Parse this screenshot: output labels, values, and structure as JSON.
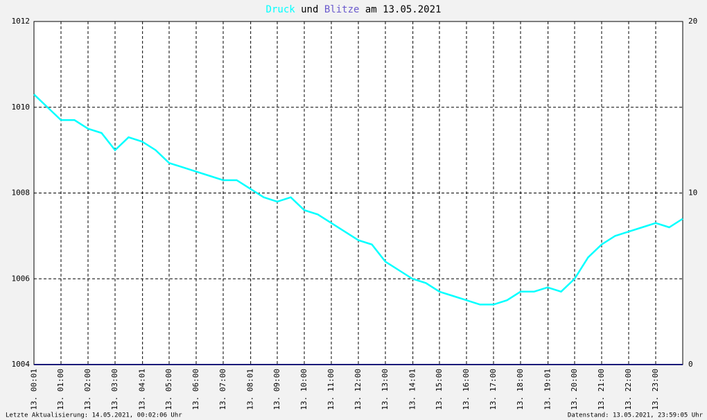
{
  "chart_data": {
    "type": "line",
    "title_parts": [
      "Druck",
      "und",
      "Blitze",
      "am 13.05.2021"
    ],
    "x": [
      0,
      0.5,
      1,
      1.5,
      2,
      2.5,
      3,
      3.5,
      4,
      4.5,
      5,
      5.5,
      6,
      6.5,
      7,
      7.5,
      8,
      8.5,
      9,
      9.5,
      10,
      10.5,
      11,
      11.5,
      12,
      12.5,
      13,
      13.5,
      14,
      14.5,
      15,
      15.5,
      16,
      16.5,
      17,
      17.5,
      18,
      18.5,
      19,
      19.5,
      20,
      20.5,
      21,
      21.5,
      22,
      22.5,
      23,
      23.5,
      24
    ],
    "series": [
      {
        "name": "Druck",
        "color": "#00ffff",
        "values": [
          1010.3,
          1010.0,
          1009.7,
          1009.7,
          1009.5,
          1009.4,
          1009.0,
          1009.3,
          1009.2,
          1009.0,
          1008.7,
          1008.6,
          1008.5,
          1008.4,
          1008.3,
          1008.3,
          1008.1,
          1007.9,
          1007.8,
          1007.9,
          1007.6,
          1007.5,
          1007.3,
          1007.1,
          1006.9,
          1006.8,
          1006.4,
          1006.2,
          1006.0,
          1005.9,
          1005.7,
          1005.6,
          1005.5,
          1005.4,
          1005.4,
          1005.5,
          1005.7,
          1005.7,
          1005.8,
          1005.7,
          1006.0,
          1006.5,
          1006.8,
          1007.0,
          1007.1,
          1007.2,
          1007.3,
          1007.2,
          1007.4
        ]
      },
      {
        "name": "Blitze",
        "color": "#1a1a7a",
        "axis": "y2",
        "values": [
          0,
          0,
          0,
          0,
          0,
          0,
          0,
          0,
          0,
          0,
          0,
          0,
          0,
          0,
          0,
          0,
          0,
          0,
          0,
          0,
          0,
          0,
          0,
          0,
          0,
          0,
          0,
          0,
          0,
          0,
          0,
          0,
          0,
          0,
          0,
          0,
          0,
          0,
          0,
          0,
          0,
          0,
          0,
          0,
          0,
          0,
          0,
          0,
          0
        ]
      }
    ],
    "xlim": [
      0,
      24
    ],
    "xticks": [
      {
        "value": 0.0167,
        "label": "13. 00:01"
      },
      {
        "value": 1,
        "label": "13. 01:00"
      },
      {
        "value": 2,
        "label": "13. 02:00"
      },
      {
        "value": 3,
        "label": "13. 03:00"
      },
      {
        "value": 4.0167,
        "label": "13. 04:01"
      },
      {
        "value": 5,
        "label": "13. 05:00"
      },
      {
        "value": 6,
        "label": "13. 06:00"
      },
      {
        "value": 7,
        "label": "13. 07:00"
      },
      {
        "value": 8.0167,
        "label": "13. 08:01"
      },
      {
        "value": 9,
        "label": "13. 09:00"
      },
      {
        "value": 10,
        "label": "13. 10:00"
      },
      {
        "value": 11,
        "label": "13. 11:00"
      },
      {
        "value": 12,
        "label": "13. 12:00"
      },
      {
        "value": 13,
        "label": "13. 13:00"
      },
      {
        "value": 14.0167,
        "label": "13. 14:01"
      },
      {
        "value": 15,
        "label": "13. 15:00"
      },
      {
        "value": 16,
        "label": "13. 16:00"
      },
      {
        "value": 17,
        "label": "13. 17:00"
      },
      {
        "value": 18,
        "label": "13. 18:00"
      },
      {
        "value": 19.0167,
        "label": "13. 19:01"
      },
      {
        "value": 20,
        "label": "13. 20:00"
      },
      {
        "value": 21,
        "label": "13. 21:00"
      },
      {
        "value": 22,
        "label": "13. 22:00"
      },
      {
        "value": 23,
        "label": "13. 23:00"
      }
    ],
    "ylim": [
      1004,
      1012
    ],
    "yticks": [
      1004,
      1006,
      1008,
      1010,
      1012
    ],
    "y2lim": [
      0,
      20
    ],
    "y2ticks": [
      0,
      10,
      20
    ],
    "grid": true,
    "footer_left": "Letzte Aktualisierung: 14.05.2021, 00:02:06 Uhr",
    "footer_right": "Datenstand: 13.05.2021, 23:59:05 Uhr"
  }
}
